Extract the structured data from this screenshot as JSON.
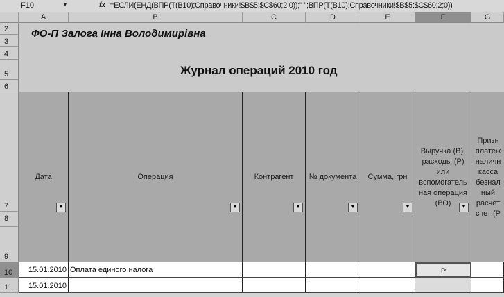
{
  "formula_bar": {
    "name_box": "F10",
    "fx_label": "fx",
    "formula": "=ЕСЛИ(ЕНД(ВПР(Т(B10);Справочники!$B$5:$C$60;2;0));\" \";ВПР(Т(B10);Справочники!$B$5:$C$60;2;0))"
  },
  "columns": [
    "A",
    "B",
    "C",
    "D",
    "E",
    "F",
    "G"
  ],
  "rows": [
    "2",
    "3",
    "4",
    "5",
    "6",
    "7",
    "8",
    "9",
    "10",
    "11"
  ],
  "owner": "ФО-П  Залога Інна Володимирівна",
  "title": "Журнал операций 2010 год",
  "headers": [
    "Дата",
    "Операция",
    "Контрагент",
    "№ документа",
    "Сумма, грн",
    "Выручка (В), расходы (Р) или вспомогатель ная операция (ВО)",
    "Призн платеж наличн касса безнал ный расчет счет (Р"
  ],
  "data_rows": [
    [
      "15.01.2010",
      "Оплата единого налога",
      "",
      "",
      "",
      "Р",
      ""
    ],
    [
      "15.01.2010",
      "",
      "",
      "",
      "",
      "",
      ""
    ]
  ]
}
